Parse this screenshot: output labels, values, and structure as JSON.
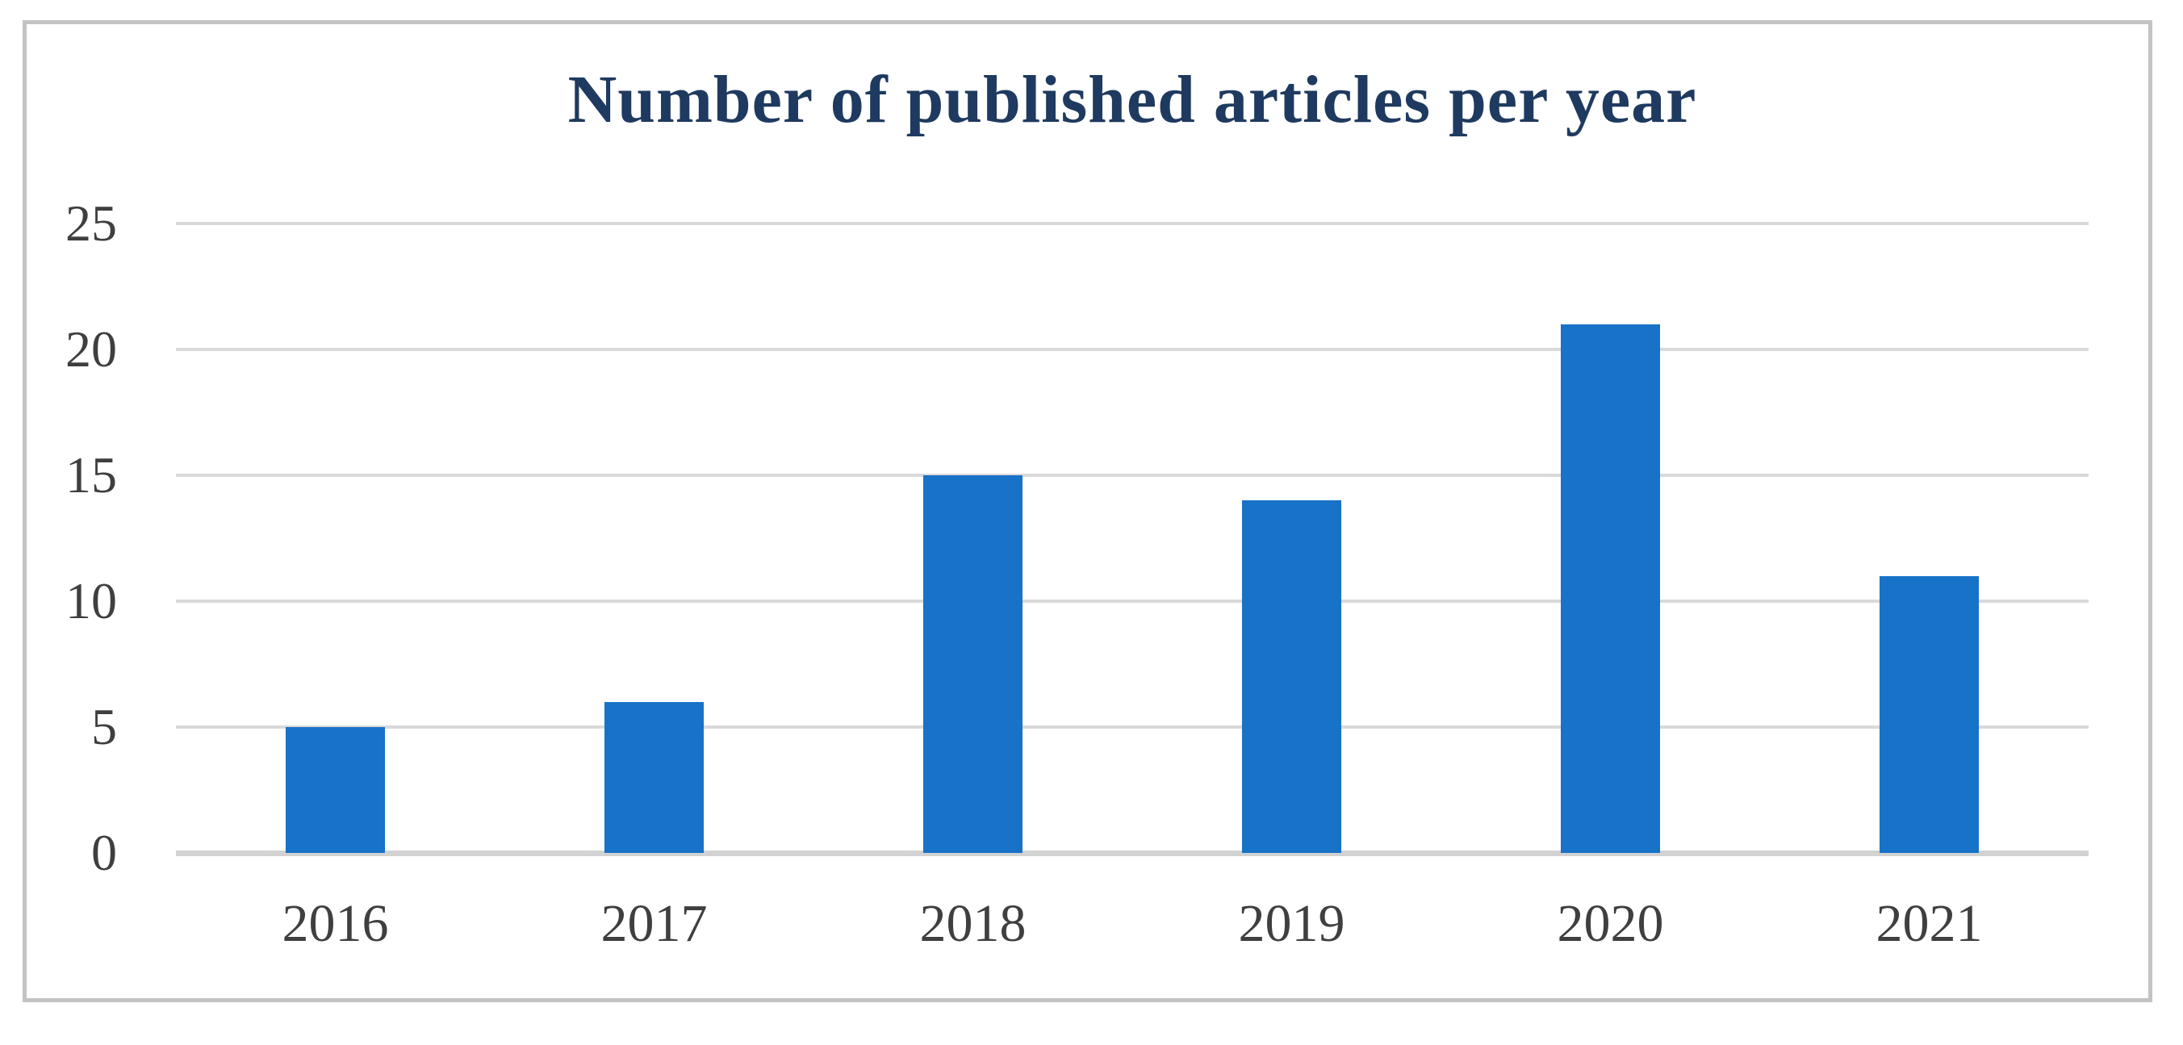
{
  "chart_data": {
    "type": "bar",
    "title": "Number of published articles per year",
    "categories": [
      "2016",
      "2017",
      "2018",
      "2019",
      "2020",
      "2021"
    ],
    "values": [
      5,
      6,
      15,
      14,
      21,
      11
    ],
    "xlabel": "",
    "ylabel": "",
    "ylim": [
      0,
      25
    ],
    "yticks": [
      0,
      5,
      10,
      15,
      20,
      25
    ],
    "grid": true,
    "legend": false,
    "bar_color": "#1772c8",
    "gridline_color": "#d9d9d9",
    "axis_line_color": "#d2d2d2",
    "title_color": "#1f3a60",
    "tick_label_color": "#3f3f3f",
    "frame_border_color": "#c3c3c3",
    "background_color": "#ffffff"
  }
}
